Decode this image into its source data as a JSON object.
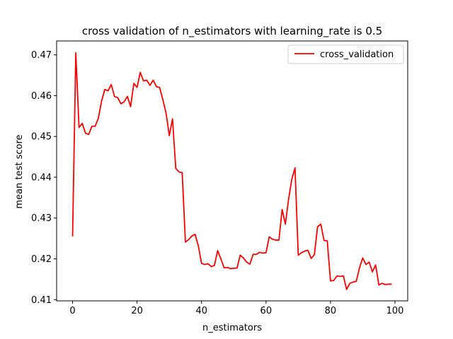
{
  "chart_data": {
    "type": "line",
    "title": "cross validation of n_estimators with learning_rate is 0.5",
    "xlabel": "n_estimators",
    "ylabel": "mean test score",
    "xlim": [
      -4.95,
      103.95
    ],
    "ylim": [
      0.4097,
      0.4734
    ],
    "xticks": [
      0,
      20,
      40,
      60,
      80,
      100
    ],
    "yticks": [
      0.41,
      0.42,
      0.43,
      0.44,
      0.45,
      0.46,
      0.47
    ],
    "grid": false,
    "legend_position": "top-right",
    "series": [
      {
        "name": "cross_validation",
        "color": "#ff0000",
        "x": [
          0,
          1,
          2,
          3,
          4,
          5,
          6,
          7,
          8,
          9,
          10,
          11,
          12,
          13,
          14,
          15,
          16,
          17,
          18,
          19,
          20,
          21,
          22,
          23,
          24,
          25,
          26,
          27,
          28,
          29,
          30,
          31,
          32,
          33,
          34,
          35,
          36,
          37,
          38,
          39,
          40,
          41,
          42,
          43,
          44,
          45,
          46,
          47,
          48,
          49,
          50,
          51,
          52,
          53,
          54,
          55,
          56,
          57,
          58,
          59,
          60,
          61,
          62,
          63,
          64,
          65,
          66,
          67,
          68,
          69,
          70,
          71,
          72,
          73,
          74,
          75,
          76,
          77,
          78,
          79,
          80,
          81,
          82,
          83,
          84,
          85,
          86,
          87,
          88,
          89,
          90,
          91,
          92,
          93,
          94,
          95,
          96,
          97,
          98,
          99
        ],
        "y": [
          0.4255,
          0.4705,
          0.4522,
          0.4532,
          0.4508,
          0.4505,
          0.4525,
          0.4525,
          0.4545,
          0.4587,
          0.4615,
          0.4612,
          0.4627,
          0.4598,
          0.4595,
          0.458,
          0.4585,
          0.4598,
          0.4573,
          0.463,
          0.462,
          0.4657,
          0.4636,
          0.4638,
          0.4625,
          0.4638,
          0.4622,
          0.462,
          0.459,
          0.4557,
          0.4502,
          0.4543,
          0.4422,
          0.4413,
          0.4411,
          0.4241,
          0.4247,
          0.4256,
          0.426,
          0.4232,
          0.4189,
          0.4186,
          0.4188,
          0.4181,
          0.4184,
          0.422,
          0.42,
          0.4178,
          0.4179,
          0.4176,
          0.4177,
          0.4177,
          0.4209,
          0.4202,
          0.4192,
          0.4187,
          0.4211,
          0.4211,
          0.4216,
          0.4214,
          0.4215,
          0.4254,
          0.4248,
          0.4246,
          0.4246,
          0.4321,
          0.4285,
          0.4346,
          0.4395,
          0.4423,
          0.4209,
          0.4215,
          0.4219,
          0.4221,
          0.4201,
          0.421,
          0.4279,
          0.4285,
          0.4245,
          0.4244,
          0.4146,
          0.4147,
          0.4158,
          0.4157,
          0.4158,
          0.4125,
          0.414,
          0.4143,
          0.4145,
          0.4178,
          0.4202,
          0.4186,
          0.4192,
          0.4168,
          0.4185,
          0.4136,
          0.414,
          0.4137,
          0.4138,
          0.4138
        ]
      }
    ]
  }
}
